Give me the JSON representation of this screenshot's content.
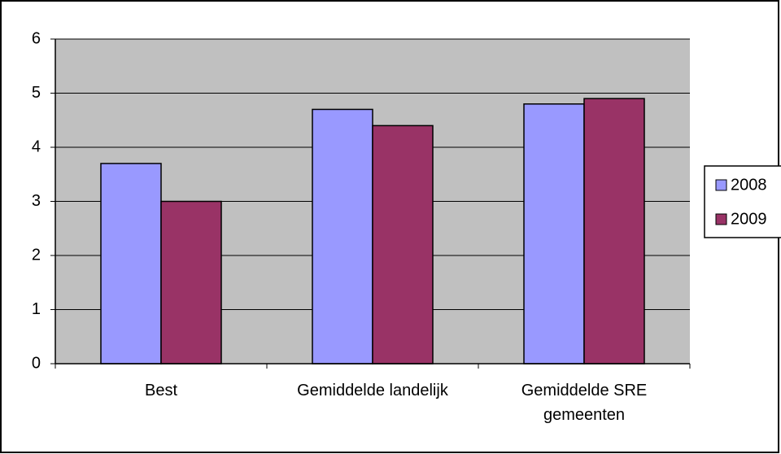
{
  "chart_data": {
    "type": "bar",
    "categories": [
      "Best",
      "Gemiddelde landelijk",
      "Gemiddelde SRE gemeenten"
    ],
    "series": [
      {
        "name": "2008",
        "color": "#9999ff",
        "values": [
          3.7,
          4.7,
          4.8
        ]
      },
      {
        "name": "2009",
        "color": "#993366",
        "values": [
          3.0,
          4.4,
          4.9
        ]
      }
    ],
    "ylim": [
      0,
      6
    ],
    "yticks": [
      0,
      1,
      2,
      3,
      4,
      5,
      6
    ],
    "grid": true,
    "legend": "right"
  }
}
